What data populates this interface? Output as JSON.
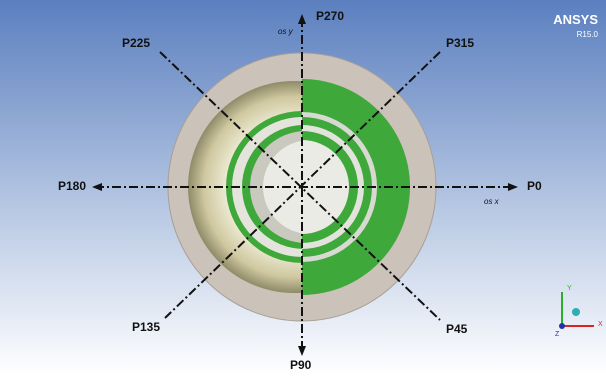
{
  "logo": {
    "title": "ANSYS",
    "version": "R15.0"
  },
  "axis_labels": {
    "x": "os x",
    "y": "os y"
  },
  "directions": [
    {
      "label": "P270"
    },
    {
      "label": "P315"
    },
    {
      "label": "P225"
    },
    {
      "label": "P180"
    },
    {
      "label": "P0"
    },
    {
      "label": "P135"
    },
    {
      "label": "P45"
    },
    {
      "label": "P90"
    }
  ],
  "triad": {
    "x": "X",
    "y": "Y",
    "z": "Z"
  }
}
